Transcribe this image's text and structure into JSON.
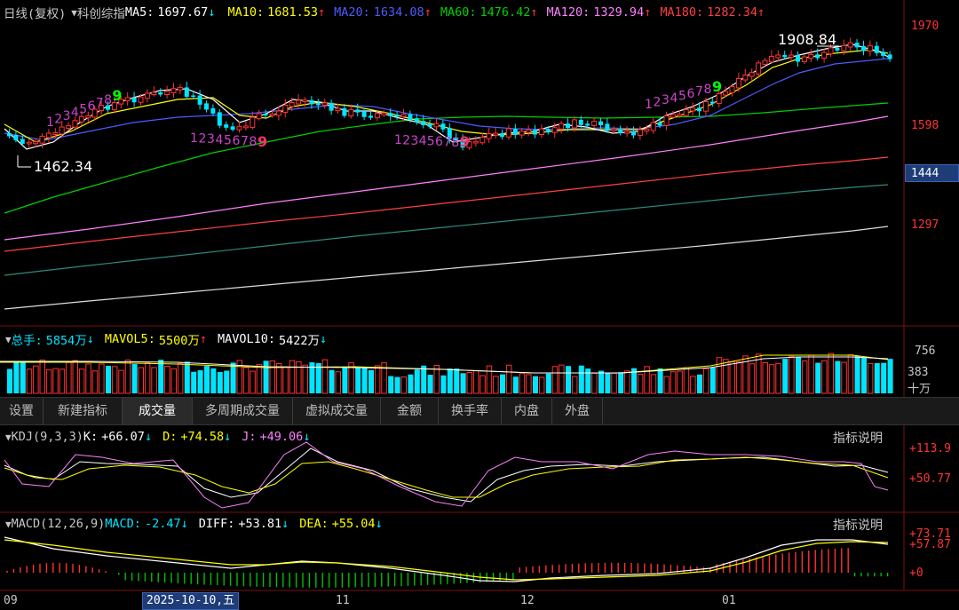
{
  "main_panel": {
    "period_label": "日线(复权)",
    "index_name": "科创综指",
    "ma5": {
      "label": "MA5:",
      "value": "1697.67",
      "arrow": "↓",
      "color": "#ffffff"
    },
    "ma10": {
      "label": "MA10:",
      "value": "1681.53",
      "arrow": "↑",
      "color": "#ffff00"
    },
    "ma20": {
      "label": "MA20:",
      "value": "1634.08",
      "arrow": "↑",
      "color": "#4c5cff"
    },
    "ma60": {
      "label": "MA60:",
      "value": "1476.42",
      "arrow": "↑",
      "color": "#00d000"
    },
    "ma120": {
      "label": "MA120:",
      "value": "1329.94",
      "arrow": "↑",
      "color": "#ff80ff"
    },
    "ma180": {
      "label": "MA180:",
      "value": "1282.34",
      "arrow": "↑",
      "color": "#ff4040"
    },
    "price_axis": [
      "1970",
      "1598",
      "1444",
      "1297"
    ],
    "current_price_tag": "1444",
    "high_annotation": "1908.84",
    "low_annotation": "1462.34",
    "td_counts_1": [
      "1",
      "2",
      "3",
      "4",
      "5",
      "6",
      "7",
      "8",
      "9"
    ],
    "td_counts_2": [
      "1",
      "2",
      "3",
      "4",
      "5",
      "6",
      "7",
      "8",
      "9"
    ],
    "td_counts_3": [
      "1",
      "2",
      "3",
      "4",
      "5",
      "6",
      "7",
      "8",
      "9"
    ],
    "td_counts_4": [
      "1",
      "2",
      "3",
      "4",
      "5",
      "6",
      "7",
      "8",
      "9"
    ]
  },
  "volume_panel": {
    "total_label": "总手:",
    "total_value": "5854万",
    "total_arrow": "↓",
    "mavol5_label": "MAVOL5:",
    "mavol5_value": "5500万",
    "mavol5_arrow": "↑",
    "mavol10_label": "MAVOL10:",
    "mavol10_value": "5422万",
    "mavol10_arrow": "↓",
    "axis": [
      "756",
      "383"
    ],
    "unit": "十万"
  },
  "tabs": [
    "设置",
    "新建指标",
    "成交量",
    "多周期成交量",
    "虚拟成交量",
    "金额",
    "换手率",
    "内盘",
    "外盘"
  ],
  "active_tab": "成交量",
  "kdj_panel": {
    "label": "KDJ(9,3,3)",
    "k_label": "K:",
    "k_value": "+66.07",
    "k_arrow": "↓",
    "d_label": "D:",
    "d_value": "+74.58",
    "d_arrow": "↓",
    "j_label": "J:",
    "j_value": "+49.06",
    "j_arrow": "↓",
    "explain": "指标说明",
    "axis": [
      "+113.9",
      "+50.77"
    ]
  },
  "macd_panel": {
    "label": "MACD(12,26,9)",
    "macd_label": "MACD:",
    "macd_value": "-2.47",
    "macd_arrow": "↓",
    "diff_label": "DIFF:",
    "diff_value": "+53.81",
    "diff_arrow": "↓",
    "dea_label": "DEA:",
    "dea_value": "+55.04",
    "dea_arrow": "↓",
    "explain": "指标说明",
    "axis": [
      "+73.71",
      "+57.87",
      "+0"
    ]
  },
  "time_axis": {
    "labels": [
      "09",
      "11",
      "12",
      "01"
    ],
    "cursor_date": "2025-10-10,五"
  },
  "colors": {
    "up": "#ff3232",
    "down": "#00e5ff",
    "ma5": "#ffffff",
    "ma10": "#ffff00",
    "ma20": "#4c5cff",
    "ma60": "#00d000",
    "ma120": "#ff80ff",
    "ma180": "#ff4040",
    "ma250": "#2e8b7a",
    "ma360": "#dddddd",
    "td": "#cc44cc",
    "td9_green": "#00ff00",
    "td9_red": "#ff3070",
    "grid": "#7a1010"
  }
}
